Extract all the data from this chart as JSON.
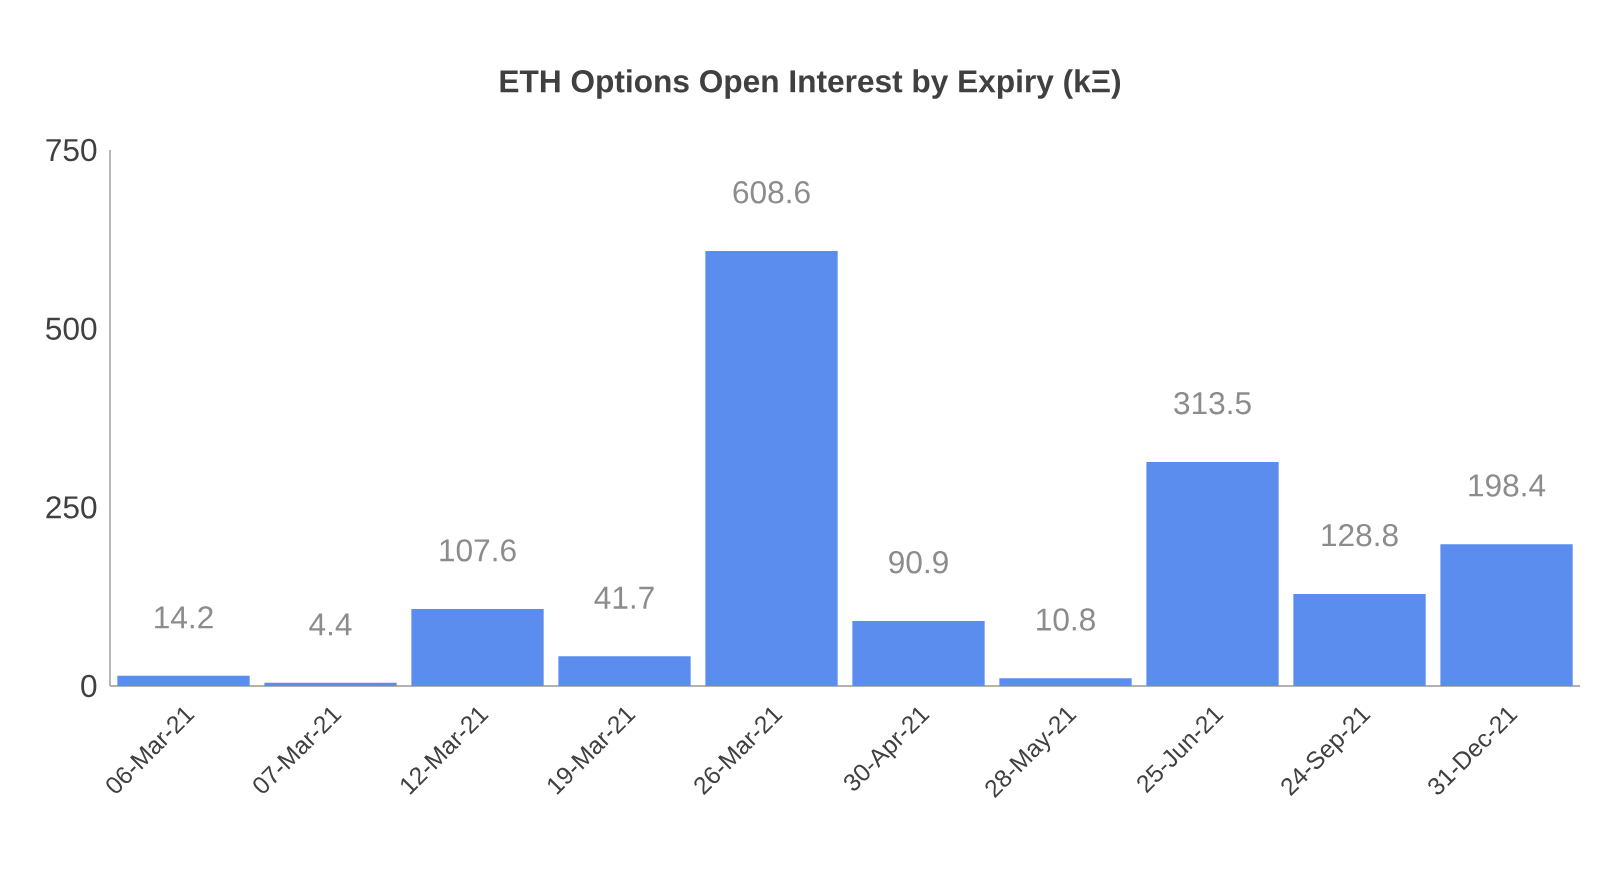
{
  "chart_data": {
    "type": "bar",
    "title": "ETH Options Open Interest by Expiry (kΞ)",
    "categories": [
      "06-Mar-21",
      "07-Mar-21",
      "12-Mar-21",
      "19-Mar-21",
      "26-Mar-21",
      "30-Apr-21",
      "28-May-21",
      "25-Jun-21",
      "24-Sep-21",
      "31-Dec-21"
    ],
    "values": [
      14.2,
      4.4,
      107.6,
      41.7,
      608.6,
      90.9,
      10.8,
      313.5,
      128.8,
      198.4
    ],
    "color": "#5b8def",
    "ylim": [
      0,
      750
    ],
    "yticks": [
      0,
      250,
      500,
      750
    ],
    "data_labels": true
  }
}
